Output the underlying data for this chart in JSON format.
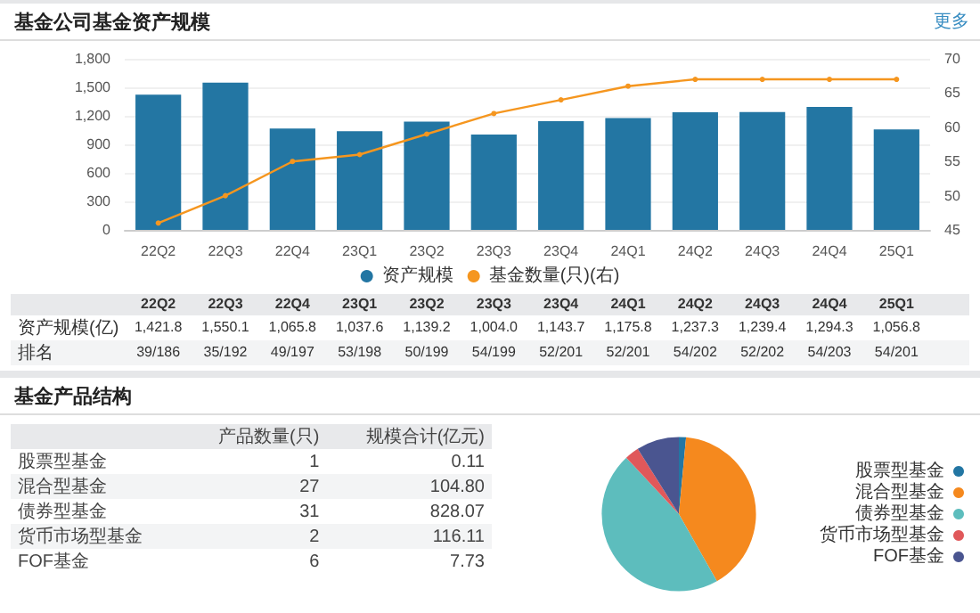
{
  "chart_data": [
    {
      "type": "bar",
      "title": "基金公司基金资产规模",
      "categories": [
        "22Q2",
        "22Q3",
        "22Q4",
        "23Q1",
        "23Q2",
        "23Q3",
        "23Q4",
        "24Q1",
        "24Q2",
        "24Q3",
        "24Q4",
        "25Q1"
      ],
      "series": [
        {
          "type": "bar",
          "name": "资产规模",
          "color": "#2376a3",
          "values": [
            1421.8,
            1550.1,
            1065.8,
            1037.6,
            1139.2,
            1004.0,
            1143.7,
            1175.8,
            1237.3,
            1239.4,
            1294.3,
            1056.8
          ],
          "value_labels": [
            "1,421.8",
            "1,550.1",
            "1,065.8",
            "1,037.6",
            "1,139.2",
            "1,004.0",
            "1,143.7",
            "1,175.8",
            "1,237.3",
            "1,239.4",
            "1,294.3",
            "1,056.8"
          ]
        },
        {
          "type": "line",
          "name": "基金数量(只)(右)",
          "color": "#f5961f",
          "axis": "y2",
          "values": [
            46,
            50,
            55,
            56,
            59,
            62,
            64,
            66,
            67,
            67,
            67,
            67
          ]
        }
      ],
      "ylim": [
        0,
        1800
      ],
      "yticks": [
        0,
        300,
        600,
        900,
        {
          "value": 1200,
          "label": "1,200"
        },
        {
          "value": 1500,
          "label": "1,500"
        },
        {
          "value": 1800,
          "label": "1,800"
        }
      ],
      "y2lim": [
        45,
        70
      ],
      "y2ticks": [
        45,
        50,
        55,
        60,
        65,
        70
      ],
      "grid": "y",
      "legend": "bottom",
      "marker": "circle",
      "annotations": [
        "更多",
        "资产规模(亿)",
        "排名",
        "39/186",
        "35/192",
        "49/197",
        "53/198",
        "50/199",
        "54/199",
        "52/201",
        "52/201",
        "54/202",
        "52/202",
        "54/203",
        "54/201"
      ]
    },
    {
      "type": "pie",
      "title": "基金产品结构",
      "categories": [
        "股票型基金",
        "混合型基金",
        "债券型基金",
        "货币市场型基金",
        "FOF基金"
      ],
      "values": [
        1,
        27,
        31,
        2,
        6
      ],
      "colors": [
        "#2376a3",
        "#f5891e",
        "#5dbdbd",
        "#e0585a",
        "#4a5590"
      ],
      "legend": "right",
      "data_labels": true,
      "annotations": [
        "产品数量(只)",
        "规模合计(亿元)",
        "0.11",
        "104.80",
        "828.07",
        "116.11",
        "7.73"
      ]
    }
  ]
}
